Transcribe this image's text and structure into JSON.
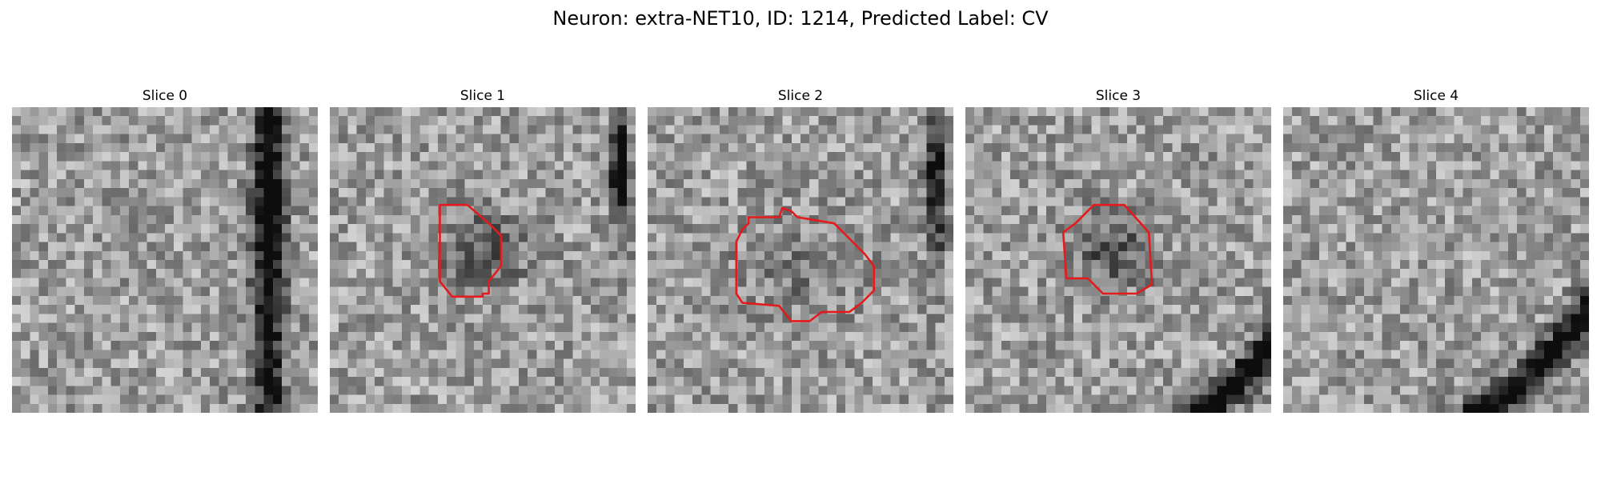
{
  "figure": {
    "title": "Neuron: extra-NET10, ID: 1214, Predicted Label: CV"
  },
  "colors": {
    "background": "#ffffff",
    "contour": "#e41a1c",
    "image_colormap": "grayscale"
  },
  "slices": [
    {
      "title": "Slice 0",
      "has_contour": false
    },
    {
      "title": "Slice 1",
      "has_contour": true
    },
    {
      "title": "Slice 2",
      "has_contour": true
    },
    {
      "title": "Slice 3",
      "has_contour": true
    },
    {
      "title": "Slice 4",
      "has_contour": false
    }
  ]
}
